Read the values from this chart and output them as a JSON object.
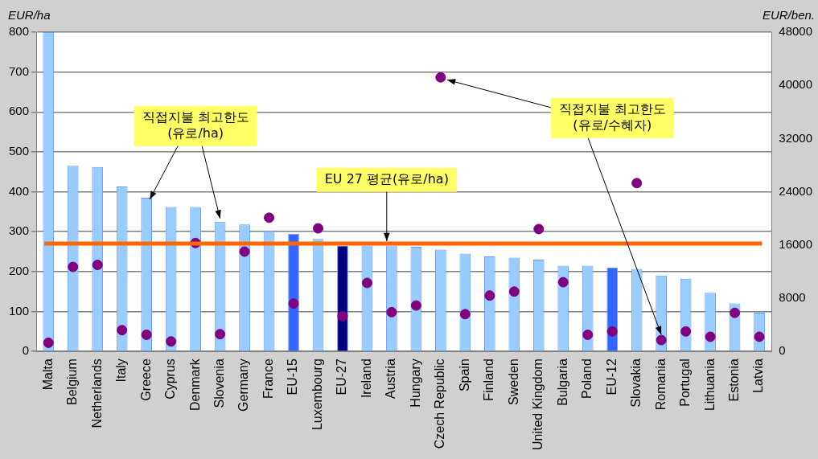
{
  "chart_data": {
    "type": "bar",
    "ylabel": "EUR/ha",
    "y2label": "EUR/ben.",
    "categories": [
      "Malta",
      "Belgium",
      "Netherlands",
      "Italy",
      "Greece",
      "Cyprus",
      "Denmark",
      "Slovenia",
      "Germany",
      "France",
      "EU-15",
      "Luxembourg",
      "EU-27",
      "Ireland",
      "Austria",
      "Hungary",
      "Czech Republic",
      "Spain",
      "Finland",
      "Sweden",
      "United Kingdom",
      "Bulgaria",
      "Poland",
      "EU-12",
      "Slovakia",
      "Romania",
      "Portugal",
      "Lithuania",
      "Estonia",
      "Latvia"
    ],
    "series": [
      {
        "colors": [
          "#99ccff",
          "#99ccff",
          "#99ccff",
          "#99ccff",
          "#99ccff",
          "#99ccff",
          "#99ccff",
          "#99ccff",
          "#99ccff",
          "#99ccff",
          "#3366ff",
          "#99ccff",
          "#000080",
          "#99ccff",
          "#99ccff",
          "#99ccff",
          "#99ccff",
          "#99ccff",
          "#99ccff",
          "#99ccff",
          "#99ccff",
          "#99ccff",
          "#99ccff",
          "#3366ff",
          "#99ccff",
          "#99ccff",
          "#99ccff",
          "#99ccff",
          "#99ccff",
          "#99ccff"
        ],
        "values": [
          800,
          465,
          462,
          413,
          385,
          362,
          362,
          325,
          318,
          302,
          295,
          282,
          265,
          265,
          265,
          262,
          255,
          245,
          238,
          235,
          230,
          215,
          215,
          210,
          207,
          190,
          182,
          147,
          120,
          97
        ]
      },
      {
        "type": "scatter",
        "axis": "y2",
        "color": "#800080",
        "x": [
          "Malta",
          "Belgium",
          "Netherlands",
          "Italy",
          "Greece",
          "Cyprus",
          "Denmark",
          "Slovenia",
          "Germany",
          "France",
          "EU-15",
          "Luxembourg",
          "EU-27",
          "Ireland",
          "Austria",
          "Hungary",
          "Czech Republic",
          "Spain",
          "Finland",
          "Sweden",
          "United Kingdom",
          "Bulgaria",
          "Poland",
          "EU-12",
          "Slovakia",
          "Romania",
          "Portugal",
          "Lithuania",
          "Estonia",
          "Latvia"
        ],
        "values": [
          1300,
          12700,
          13000,
          3200,
          2500,
          1500,
          16300,
          2600,
          15000,
          20100,
          7200,
          18500,
          5300,
          10300,
          5900,
          6900,
          41200,
          5600,
          8400,
          9000,
          18400,
          10400,
          2500,
          3000,
          25300,
          1700,
          3000,
          2200,
          5800,
          2200
        ]
      }
    ],
    "ylim": [
      0,
      800
    ],
    "yticks": [
      0,
      100,
      200,
      300,
      400,
      500,
      600,
      700,
      800
    ],
    "y2lim": [
      0,
      48000
    ],
    "y2ticks": [
      0,
      8000,
      16000,
      24000,
      32000,
      40000,
      48000
    ],
    "ref_lines": [
      {
        "axis": "y",
        "value": 270,
        "label": "EU 27 평균(유로/ha)",
        "color": "#ff6600"
      }
    ],
    "annotations": [
      {
        "text": "직접지불 최고한도\n(유로/ha)",
        "x": "Greece",
        "y": 385
      },
      {
        "text": "직접지불 최고한도\n(유로/수혜자)",
        "x": "Romania",
        "y": 28
      }
    ],
    "grid": "y",
    "legend": false,
    "marker": "circle"
  }
}
